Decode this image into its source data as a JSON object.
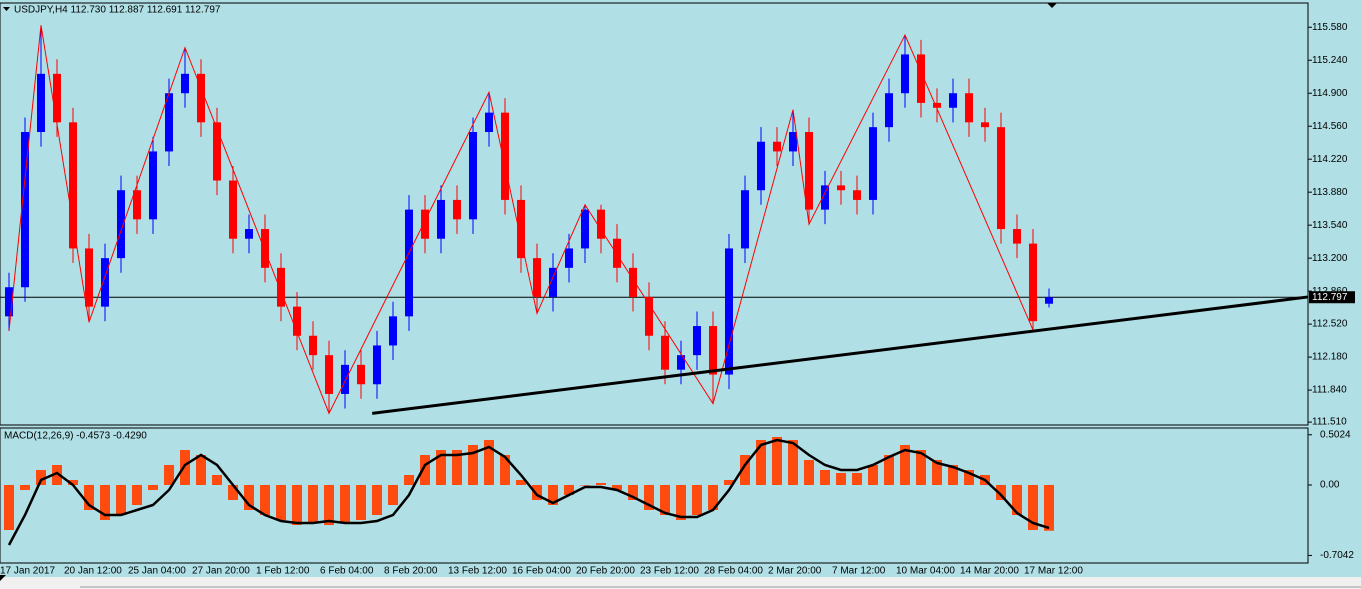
{
  "chart_data": {
    "type": "candlestick",
    "title": "USDJPY,H4  112.730 112.887 112.691 112.797",
    "categories": [
      null,
      "17 Jan 2017",
      null,
      null,
      null,
      "20 Jan 12:00",
      null,
      null,
      null,
      "25 Jan 04:00",
      null,
      null,
      null,
      "27 Jan 20:00",
      null,
      null,
      null,
      "1 Feb 12:00",
      null,
      null,
      null,
      "6 Feb 04:00",
      null,
      null,
      null,
      "8 Feb 20:00",
      null,
      null,
      null,
      "13 Feb 12:00",
      null,
      null,
      null,
      "16 Feb 04:00",
      null,
      null,
      null,
      "20 Feb 20:00",
      null,
      null,
      null,
      "23 Feb 12:00",
      null,
      null,
      null,
      "28 Feb 04:00",
      null,
      null,
      null,
      "2 Mar 20:00",
      null,
      null,
      null,
      "7 Mar 12:00",
      null,
      null,
      null,
      "10 Mar 04:00",
      null,
      null,
      null,
      "14 Mar 20:00",
      null,
      null,
      null,
      "17 Mar 12:00"
    ],
    "open": [
      112.6,
      112.9,
      114.5,
      115.1,
      114.6,
      113.3,
      112.7,
      113.2,
      113.9,
      113.6,
      114.3,
      114.9,
      115.1,
      114.6,
      114.0,
      113.4,
      113.5,
      113.1,
      112.7,
      112.4,
      112.2,
      111.8,
      112.1,
      111.9,
      112.3,
      112.6,
      113.7,
      113.4,
      113.8,
      113.6,
      114.5,
      114.7,
      113.8,
      113.2,
      112.8,
      113.1,
      113.3,
      113.7,
      113.4,
      113.1,
      112.8,
      112.4,
      112.05,
      112.2,
      112.5,
      112.0,
      113.3,
      113.9,
      114.4,
      114.3,
      114.5,
      113.7,
      113.95,
      113.9,
      113.8,
      114.55,
      114.9,
      115.3,
      114.8,
      114.75,
      114.9,
      114.6,
      114.55,
      113.5,
      113.35,
      112.73
    ],
    "high": [
      113.05,
      114.65,
      115.6,
      115.25,
      114.75,
      113.45,
      113.35,
      114.05,
      114.05,
      114.45,
      115.05,
      115.37,
      115.25,
      114.75,
      114.15,
      113.65,
      113.65,
      113.25,
      112.85,
      112.55,
      112.35,
      112.25,
      112.25,
      112.45,
      112.75,
      113.85,
      113.85,
      113.95,
      113.95,
      114.65,
      114.91,
      114.85,
      113.95,
      113.35,
      113.25,
      113.45,
      113.75,
      113.75,
      113.55,
      113.25,
      112.95,
      112.55,
      112.35,
      112.65,
      112.65,
      113.45,
      114.05,
      114.55,
      114.55,
      114.73,
      114.65,
      114.1,
      114.1,
      114.05,
      114.7,
      115.05,
      115.5,
      115.45,
      114.95,
      115.05,
      115.05,
      114.75,
      114.7,
      113.65,
      113.5,
      112.887
    ],
    "low": [
      112.45,
      112.75,
      114.35,
      114.45,
      113.15,
      112.54,
      112.55,
      113.05,
      113.45,
      113.45,
      114.15,
      114.75,
      114.45,
      113.85,
      113.25,
      113.25,
      112.95,
      112.55,
      112.25,
      112.05,
      111.6,
      111.65,
      111.75,
      111.75,
      112.15,
      112.45,
      113.25,
      113.25,
      113.45,
      113.45,
      114.35,
      113.65,
      113.05,
      112.63,
      112.65,
      112.95,
      113.15,
      113.25,
      112.95,
      112.65,
      112.25,
      111.9,
      111.9,
      112.05,
      111.7,
      111.85,
      113.15,
      113.75,
      114.15,
      114.15,
      113.55,
      113.55,
      113.75,
      113.65,
      113.65,
      114.4,
      114.75,
      114.65,
      114.6,
      114.6,
      114.45,
      114.4,
      113.35,
      113.2,
      112.46,
      112.691
    ],
    "close": [
      112.9,
      114.5,
      115.1,
      114.6,
      113.3,
      112.7,
      113.2,
      113.9,
      113.6,
      114.3,
      114.9,
      115.1,
      114.6,
      114.0,
      113.4,
      113.5,
      113.1,
      112.7,
      112.4,
      112.2,
      111.8,
      112.1,
      111.9,
      112.3,
      112.6,
      113.7,
      113.4,
      113.8,
      113.6,
      114.5,
      114.7,
      113.8,
      113.2,
      112.8,
      113.1,
      113.3,
      113.7,
      113.4,
      113.1,
      112.8,
      112.4,
      112.05,
      112.2,
      112.5,
      112.0,
      113.3,
      113.9,
      114.4,
      114.3,
      114.5,
      113.7,
      113.95,
      113.9,
      113.8,
      114.55,
      114.9,
      115.3,
      114.8,
      114.75,
      114.9,
      114.6,
      114.55,
      113.5,
      113.35,
      112.55,
      112.797
    ],
    "up_color": "#0000ff",
    "down_color": "#ff0000",
    "ylim": [
      111.48,
      115.83
    ],
    "yticks": [
      {
        "value": 111.51,
        "label": "111.510"
      },
      {
        "value": 111.84,
        "label": "111.840"
      },
      {
        "value": 112.18,
        "label": "112.180"
      },
      {
        "value": 112.52,
        "label": "112.520"
      },
      {
        "value": 112.86,
        "label": "112.860"
      },
      {
        "value": 113.2,
        "label": "113.200"
      },
      {
        "value": 113.54,
        "label": "113.540"
      },
      {
        "value": 113.88,
        "label": "113.880"
      },
      {
        "value": 114.22,
        "label": "114.220"
      },
      {
        "value": 114.56,
        "label": "114.560"
      },
      {
        "value": 114.9,
        "label": "114.900"
      },
      {
        "value": 115.24,
        "label": "115.240"
      },
      {
        "value": 115.58,
        "label": "115.580"
      }
    ],
    "current_price": 112.797,
    "zigzag": {
      "color": "#ff0000",
      "x": [
        0,
        2,
        5,
        11,
        20,
        30,
        33,
        36,
        44,
        49,
        50,
        56,
        64
      ],
      "y": [
        112.45,
        115.6,
        112.54,
        115.37,
        111.6,
        114.91,
        112.63,
        113.75,
        111.7,
        114.73,
        113.55,
        115.5,
        112.46
      ]
    },
    "trendline": {
      "color": "#000000",
      "x": [
        22.7,
        81.2
      ],
      "y": [
        111.6,
        112.8
      ]
    },
    "macd": {
      "title": "MACD(12,26,9) -0.4573 -0.4290",
      "histogram": {
        "color": "#ff4a10",
        "values": [
          -0.45,
          -0.05,
          0.15,
          0.2,
          0.05,
          -0.25,
          -0.35,
          -0.3,
          -0.2,
          -0.05,
          0.2,
          0.35,
          0.3,
          0.1,
          -0.15,
          -0.25,
          -0.3,
          -0.35,
          -0.4,
          -0.38,
          -0.4,
          -0.38,
          -0.35,
          -0.3,
          -0.2,
          0.1,
          0.3,
          0.35,
          0.35,
          0.4,
          0.45,
          0.3,
          0.05,
          -0.15,
          -0.2,
          -0.1,
          0.0,
          0.02,
          -0.05,
          -0.15,
          -0.25,
          -0.3,
          -0.35,
          -0.3,
          -0.25,
          0.05,
          0.3,
          0.45,
          0.48,
          0.45,
          0.25,
          0.15,
          0.12,
          0.12,
          0.2,
          0.3,
          0.4,
          0.35,
          0.25,
          0.2,
          0.15,
          0.1,
          -0.15,
          -0.3,
          -0.45,
          -0.4573
        ]
      },
      "signal": {
        "color": "#000000",
        "values": [
          -0.6,
          -0.3,
          0.05,
          0.12,
          0.0,
          -0.2,
          -0.3,
          -0.3,
          -0.25,
          -0.2,
          -0.05,
          0.2,
          0.3,
          0.2,
          0.0,
          -0.2,
          -0.3,
          -0.36,
          -0.38,
          -0.38,
          -0.36,
          -0.38,
          -0.38,
          -0.36,
          -0.3,
          -0.1,
          0.2,
          0.3,
          0.3,
          0.32,
          0.38,
          0.28,
          0.1,
          -0.1,
          -0.18,
          -0.1,
          -0.02,
          -0.02,
          -0.05,
          -0.12,
          -0.2,
          -0.28,
          -0.32,
          -0.32,
          -0.25,
          -0.05,
          0.2,
          0.4,
          0.45,
          0.42,
          0.3,
          0.2,
          0.15,
          0.15,
          0.2,
          0.28,
          0.35,
          0.32,
          0.22,
          0.18,
          0.12,
          0.05,
          -0.1,
          -0.28,
          -0.38,
          -0.429
        ]
      },
      "y2lim": [
        -0.78,
        0.57
      ],
      "y2ticks": [
        -0.7042,
        {
          "value": 0,
          "label": "0.00"
        },
        0.5024
      ]
    }
  }
}
